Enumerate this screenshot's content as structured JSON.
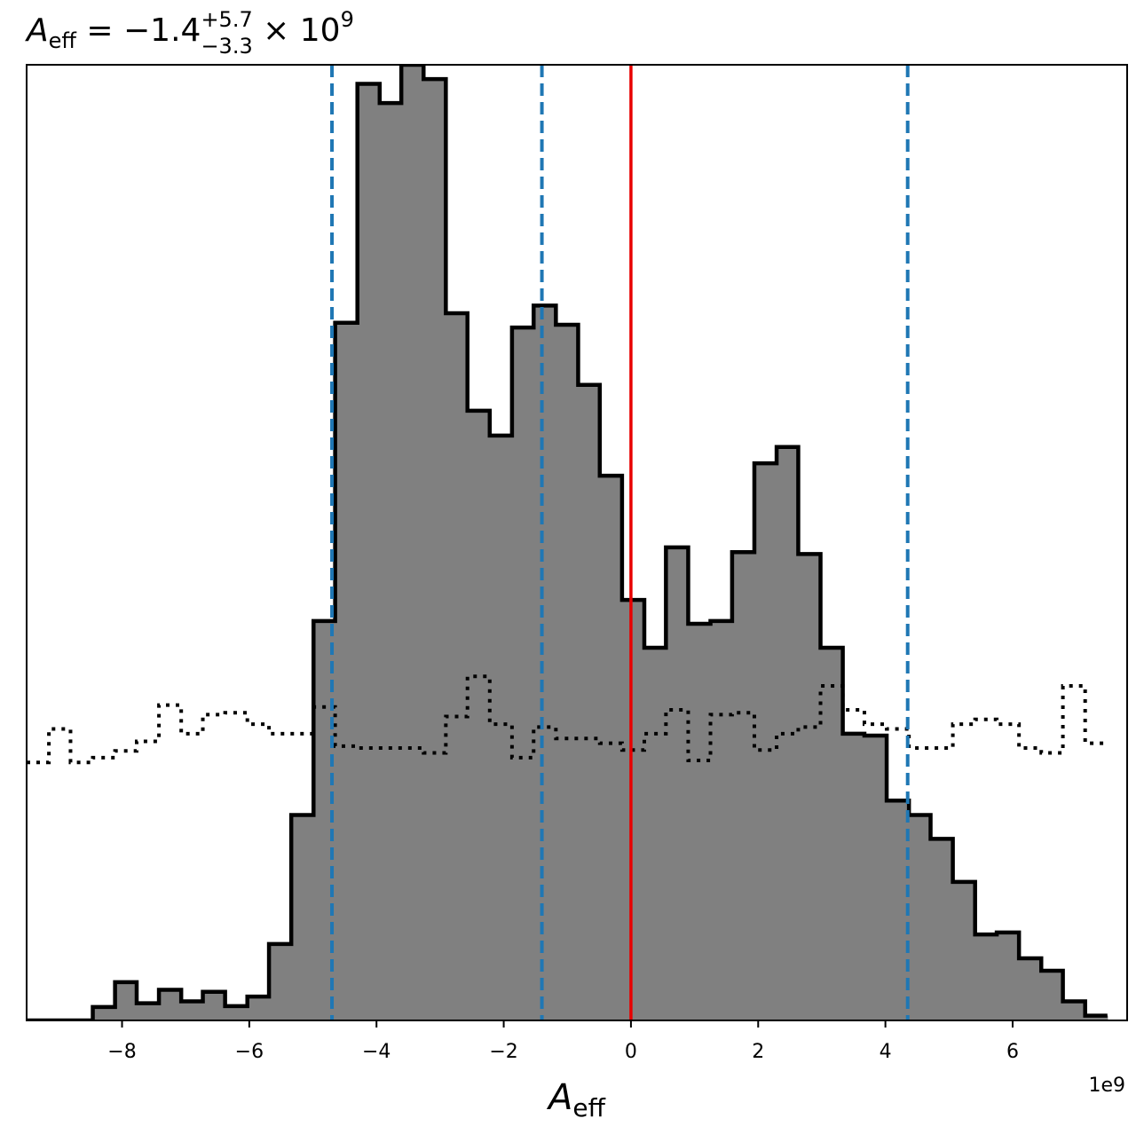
{
  "chart_data": {
    "type": "histogram",
    "title": {
      "symbol": "A",
      "symbol_sub": "eff",
      "equals": " = ",
      "median": "−1.4",
      "upper": "+5.7",
      "lower": "−3.3",
      "times": " × 10",
      "exponent": "9"
    },
    "xlabel": {
      "symbol": "A",
      "sub": "eff"
    },
    "x_offset_label": "1e9",
    "x_scale_factor": 1000000000.0,
    "xlim": [
      -9.5,
      7.8
    ],
    "ylim": [
      0,
      1.0
    ],
    "xticks": [
      -8,
      -6,
      -4,
      -2,
      0,
      2,
      4,
      6
    ],
    "xtick_labels": [
      "−8",
      "−6",
      "−4",
      "−2",
      "0",
      "2",
      "4",
      "6"
    ],
    "yticks_visible": false,
    "bin_edges": [
      -9.5,
      -9.15,
      -8.81,
      -8.46,
      -8.11,
      -7.77,
      -7.42,
      -7.07,
      -6.73,
      -6.38,
      -6.03,
      -5.69,
      -5.34,
      -4.99,
      -4.65,
      -4.3,
      -3.95,
      -3.61,
      -3.26,
      -2.91,
      -2.57,
      -2.22,
      -1.87,
      -1.53,
      -1.18,
      -0.83,
      -0.49,
      -0.14,
      0.21,
      0.55,
      0.9,
      1.25,
      1.59,
      1.94,
      2.29,
      2.63,
      2.98,
      3.33,
      3.67,
      4.02,
      4.37,
      4.71,
      5.06,
      5.41,
      5.75,
      6.1,
      6.45,
      6.79,
      7.14,
      7.49
    ],
    "posterior_counts": [
      0.0,
      0.0,
      0.0,
      0.014,
      0.04,
      0.018,
      0.032,
      0.02,
      0.03,
      0.015,
      0.025,
      0.08,
      0.215,
      0.418,
      0.73,
      0.98,
      0.96,
      1.0,
      0.985,
      0.74,
      0.638,
      0.612,
      0.725,
      0.748,
      0.728,
      0.665,
      0.57,
      0.44,
      0.39,
      0.495,
      0.415,
      0.418,
      0.49,
      0.583,
      0.6,
      0.488,
      0.39,
      0.3,
      0.298,
      0.23,
      0.215,
      0.19,
      0.145,
      0.09,
      0.092,
      0.065,
      0.052,
      0.02,
      0.005
    ],
    "prior_counts": [
      0.27,
      0.305,
      0.27,
      0.275,
      0.282,
      0.292,
      0.33,
      0.3,
      0.32,
      0.322,
      0.31,
      0.3,
      0.3,
      0.328,
      0.287,
      0.285,
      0.285,
      0.285,
      0.28,
      0.318,
      0.36,
      0.31,
      0.275,
      0.307,
      0.295,
      0.295,
      0.29,
      0.283,
      0.3,
      0.325,
      0.272,
      0.32,
      0.322,
      0.283,
      0.3,
      0.307,
      0.35,
      0.325,
      0.31,
      0.305,
      0.285,
      0.285,
      0.31,
      0.315,
      0.31,
      0.285,
      0.28,
      0.35,
      0.29
    ],
    "quantile_lines": [
      -4.7,
      -1.4,
      4.35
    ],
    "truth_line": 0.0,
    "colors": {
      "posterior_fill": "#808080",
      "posterior_edge": "#000000",
      "prior_line": "#000000",
      "quantile_line": "#1f77b4",
      "truth_line": "#e80000"
    },
    "legend": "none",
    "grid": false
  }
}
